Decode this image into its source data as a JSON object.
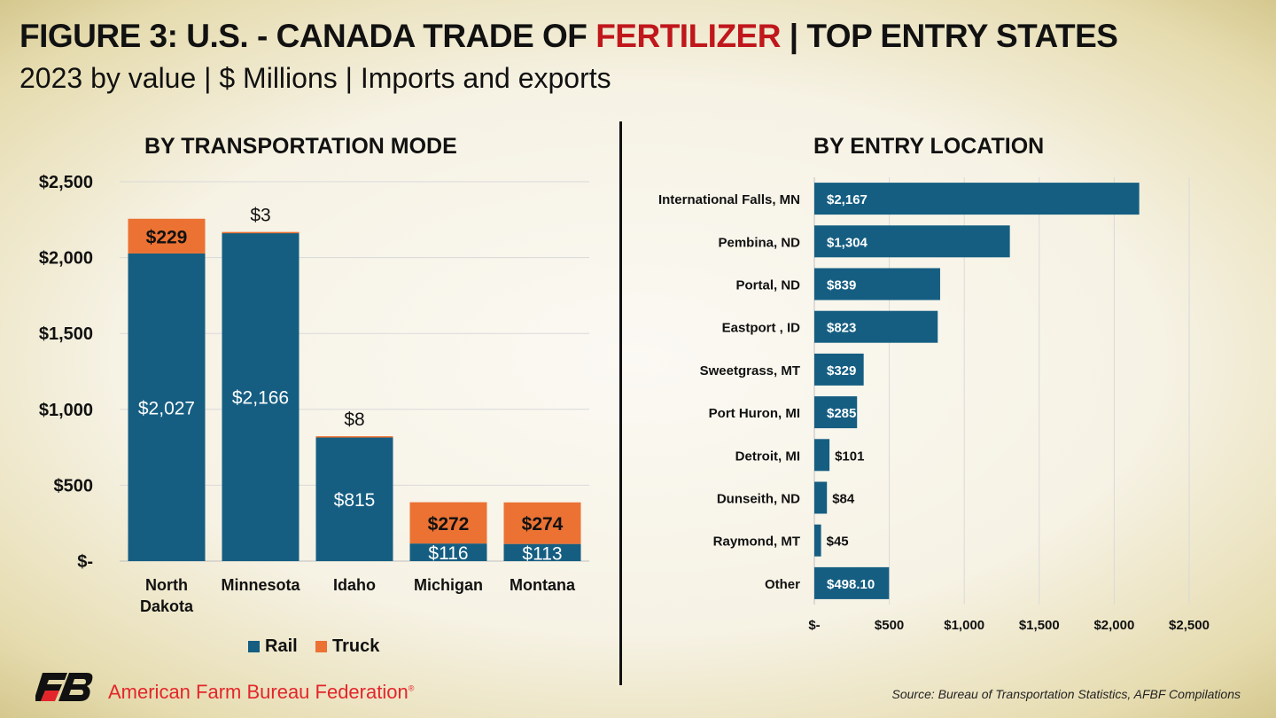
{
  "header": {
    "title_prefix": "FIGURE 3: U.S. - CANADA TRADE OF ",
    "title_highlight": "FERTILIZER",
    "title_suffix": " | TOP ENTRY STATES",
    "subtitle": "2023 by value | $ Millions | Imports and exports"
  },
  "colors": {
    "rail": "#155e82",
    "truck": "#eb7233",
    "highlight": "#c0171c",
    "brand_red": "#e3262b"
  },
  "chart_data": [
    {
      "type": "bar",
      "stacked": true,
      "title": "BY TRANSPORTATION MODE",
      "categories": [
        "North Dakota",
        "Minnesota",
        "Idaho",
        "Michigan",
        "Montana"
      ],
      "series": [
        {
          "name": "Rail",
          "values": [
            2027,
            2166,
            815,
            116,
            113
          ],
          "labels": [
            "$2,027",
            "$2,166",
            "$815",
            "$116",
            "$113"
          ]
        },
        {
          "name": "Truck",
          "values": [
            229,
            3,
            8,
            272,
            274
          ],
          "labels": [
            "$229",
            "$3",
            "$8",
            "$272",
            "$274"
          ]
        }
      ],
      "ylim": [
        0,
        2500
      ],
      "yticks": [
        0,
        500,
        1000,
        1500,
        2000,
        2500
      ],
      "ytick_labels": [
        "$-",
        "$500",
        "$1,000",
        "$1,500",
        "$2,000",
        "$2,500"
      ],
      "grid": true,
      "legend": "bottom"
    },
    {
      "type": "bar",
      "orientation": "horizontal",
      "title": "BY ENTRY LOCATION",
      "categories": [
        "International Falls, MN",
        "Pembina, ND",
        "Portal, ND",
        "Eastport , ID",
        "Sweetgrass, MT",
        "Port Huron, MI",
        "Detroit, MI",
        "Dunseith, ND",
        "Raymond, MT",
        "Other"
      ],
      "values": [
        2167,
        1304,
        839,
        823,
        329,
        285,
        101,
        84,
        45,
        498.1
      ],
      "labels": [
        "$2,167",
        "$1,304",
        "$839",
        "$823",
        "$329",
        "$285",
        "$101",
        "$84",
        "$45",
        "$498.10"
      ],
      "xlim": [
        0,
        2500
      ],
      "xticks": [
        0,
        500,
        1000,
        1500,
        2000,
        2500
      ],
      "xtick_labels": [
        "$-",
        "$500",
        "$1,000",
        "$1,500",
        "$2,000",
        "$2,500"
      ],
      "grid": true
    }
  ],
  "footer": {
    "org_name": "American Farm Bureau Federation",
    "logo_text": "FB",
    "registered_mark": "®",
    "source": "Source: Bureau of Transportation Statistics, AFBF Compilations"
  }
}
